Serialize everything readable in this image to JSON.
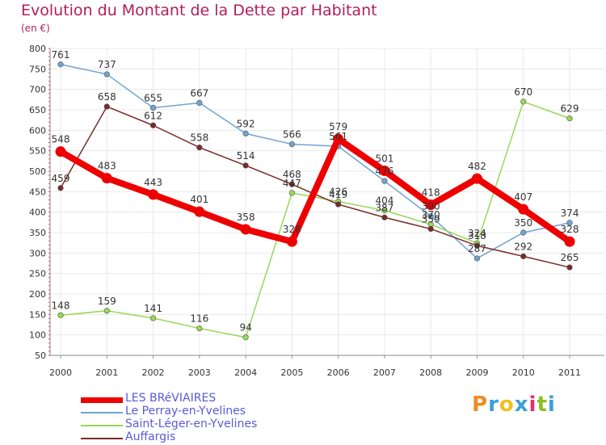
{
  "header": {
    "title": "Evolution du Montant de la Dette par Habitant",
    "subtitle": "(en €)"
  },
  "brand": {
    "text": "Proxiti",
    "colors": [
      "#f08a24",
      "#3aa0d8",
      "#f0c020",
      "#3aa0d8",
      "#e03070",
      "#8ac020",
      "#3aa0d8"
    ]
  },
  "colors": {
    "text": "#333333",
    "grid": "#e8e8e8",
    "title": "#b0205a",
    "legend_text": "#5a5ad8"
  },
  "chart_data": {
    "type": "line",
    "title": "Evolution du Montant de la Dette par Habitant",
    "subtitle": "(en €)",
    "categories": [
      "2000",
      "2001",
      "2002",
      "2003",
      "2004",
      "2005",
      "2006",
      "2007",
      "2008",
      "2009",
      "2010",
      "2011"
    ],
    "ylim": [
      50,
      800
    ],
    "yticks": [
      50,
      100,
      150,
      200,
      250,
      300,
      350,
      400,
      450,
      500,
      550,
      600,
      650,
      700,
      750,
      800
    ],
    "grid": true,
    "legend_position": "bottom-left",
    "series": [
      {
        "name": "LES BRéVIAIRES",
        "color": "#ee0000",
        "emphasis": true,
        "values": [
          548,
          483,
          443,
          401,
          358,
          328,
          579,
          501,
          418,
          482,
          407,
          328
        ]
      },
      {
        "name": "Le Perray-en-Yvelines",
        "color": "#6fa4d2",
        "values": [
          761,
          737,
          655,
          667,
          592,
          566,
          561,
          476,
          390,
          287,
          350,
          374
        ]
      },
      {
        "name": "Saint-Léger-en-Yvelines",
        "color": "#98d858",
        "values": [
          148,
          159,
          141,
          116,
          94,
          447,
          426,
          404,
          370,
          324,
          670,
          629
        ]
      },
      {
        "name": "Auffargis",
        "color": "#7a2a2a",
        "values": [
          459,
          658,
          612,
          558,
          514,
          468,
          419,
          387,
          359,
          318,
          292,
          265
        ]
      }
    ]
  }
}
